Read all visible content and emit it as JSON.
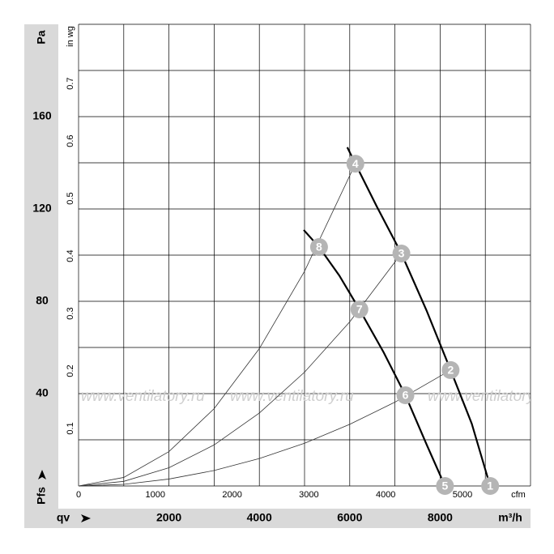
{
  "chart_data": {
    "type": "line",
    "y_label": "Pa",
    "y2_label": "in wg",
    "x_label": "m³/h",
    "x2_label": "cfm",
    "x_symbol": "qv",
    "y_symbol": "Pfs",
    "watermark": "www.ventilatory.ru",
    "xlim": [
      0,
      10000
    ],
    "ylim": [
      0,
      200
    ],
    "xticks": [
      2000,
      4000,
      6000,
      8000
    ],
    "yticks": [
      40,
      80,
      120,
      160
    ],
    "x2lim": [
      0,
      5886
    ],
    "x2ticks": [
      0,
      1000,
      2000,
      3000,
      4000,
      5000
    ],
    "y2lim": [
      0,
      0.803
    ],
    "y2ticks": [
      0.1,
      0.2,
      0.3,
      0.4,
      0.5,
      0.6,
      0.7
    ],
    "xgrid": [
      0,
      1000,
      2000,
      3000,
      4000,
      5000,
      6000,
      7000,
      8000,
      9000,
      10000
    ],
    "ygrid": [
      0,
      20,
      40,
      60,
      80,
      100,
      120,
      140,
      160,
      180,
      200
    ],
    "series": [
      {
        "color": "#000000",
        "width": 2.2,
        "x": [
          5946,
          6125,
          6600,
          7143,
          7700,
          8232,
          8700,
          9107
        ],
        "values": [
          146.7,
          139.6,
          121,
          100.7,
          76,
          50.2,
          27,
          0
        ]
      },
      {
        "color": "#000000",
        "width": 2.2,
        "x": [
          4982,
          5321,
          5768,
          6214,
          6750,
          7232,
          7700,
          8107
        ],
        "values": [
          110.9,
          103.5,
          91.2,
          76.5,
          57.9,
          39.3,
          18,
          0
        ]
      },
      {
        "color": "#333333",
        "width": 0.8,
        "x": [
          0,
          1000,
          2000,
          3000,
          4000,
          5000,
          6125
        ],
        "values": [
          0,
          3.7,
          14.9,
          33.5,
          59.5,
          93.0,
          139.6
        ]
      },
      {
        "color": "#333333",
        "width": 0.8,
        "x": [
          0,
          1000,
          2000,
          3000,
          4000,
          5000,
          6000,
          7143
        ],
        "values": [
          0,
          2.0,
          7.9,
          17.8,
          31.6,
          49.3,
          71.1,
          100.7
        ]
      },
      {
        "color": "#333333",
        "width": 0.8,
        "x": [
          0,
          1000,
          2000,
          3000,
          4000,
          5000,
          6000,
          7000,
          8232
        ],
        "values": [
          0,
          0.7,
          3.0,
          6.7,
          11.9,
          18.5,
          26.7,
          36.3,
          50.2
        ]
      }
    ],
    "points": [
      {
        "label": "1",
        "x": 9107,
        "y": 0
      },
      {
        "label": "2",
        "x": 8232,
        "y": 50.2
      },
      {
        "label": "3",
        "x": 7143,
        "y": 100.7
      },
      {
        "label": "4",
        "x": 6125,
        "y": 139.6
      },
      {
        "label": "5",
        "x": 8107,
        "y": 0
      },
      {
        "label": "6",
        "x": 7232,
        "y": 39.3
      },
      {
        "label": "7",
        "x": 6214,
        "y": 76.5
      },
      {
        "label": "8",
        "x": 5321,
        "y": 103.5
      }
    ],
    "point_color": "#b5b5b5"
  }
}
